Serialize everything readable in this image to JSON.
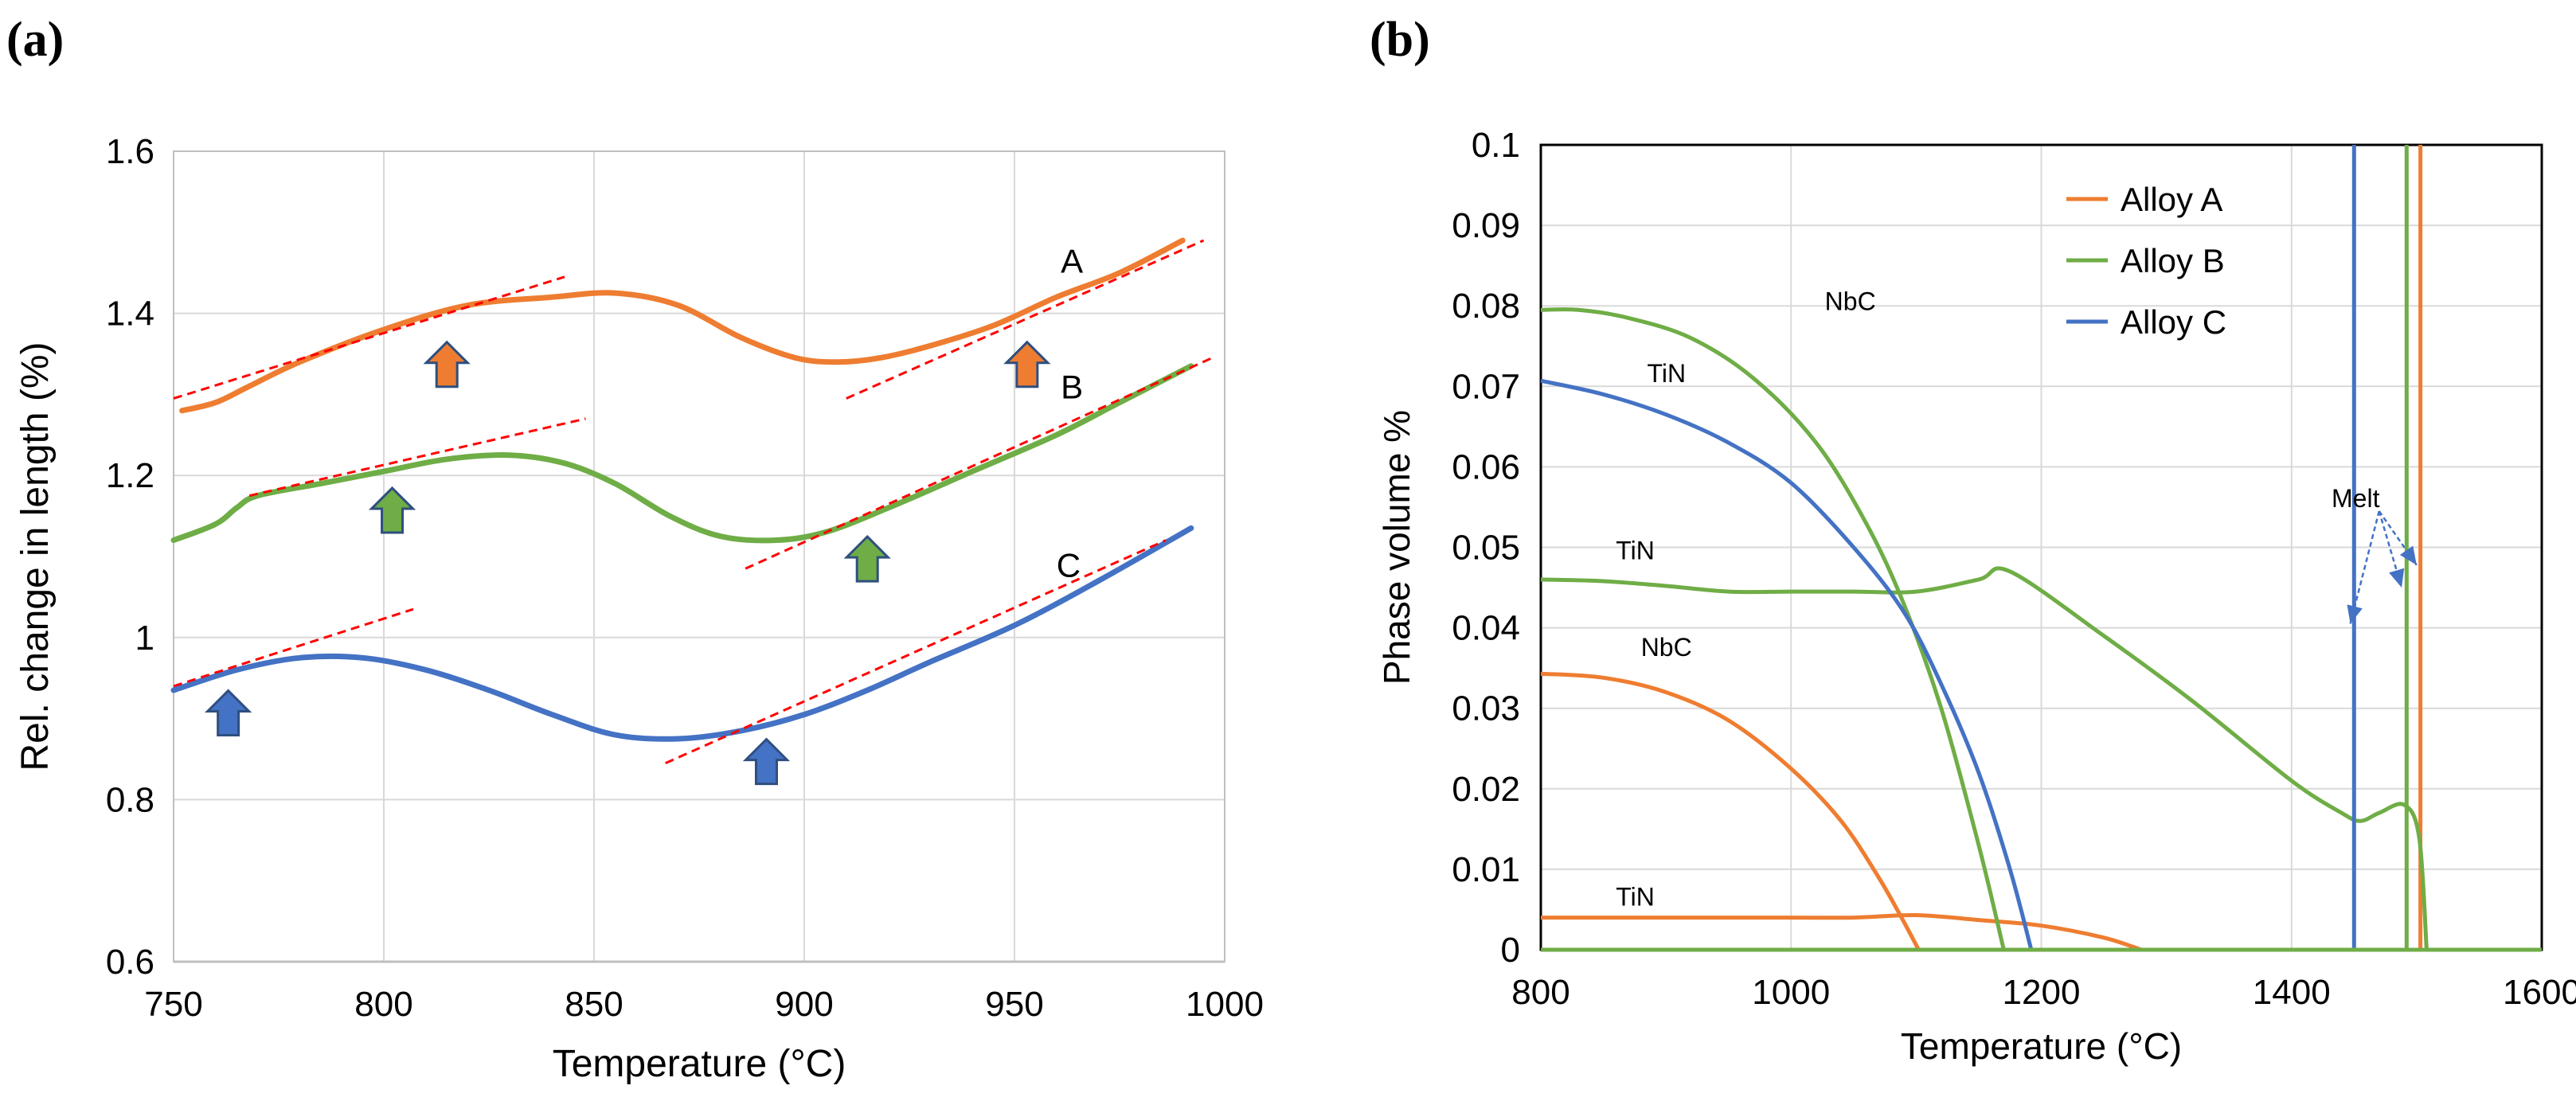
{
  "chart_data": [
    {
      "type": "line",
      "panel_label": "(a)",
      "xlabel": "Temperature (°C)",
      "ylabel": "Rel. change in length (%)",
      "xlim": [
        750,
        1000
      ],
      "ylim": [
        0.6,
        1.6
      ],
      "x_ticks": [
        "750",
        "800",
        "850",
        "900",
        "950",
        "1000"
      ],
      "y_ticks": [
        "0.6",
        "0.8",
        "1",
        "1.2",
        "1.4",
        "1.6"
      ],
      "grid": true,
      "colors": {
        "A": "#ee7d31",
        "B": "#6fad46",
        "C": "#4472c4",
        "tangent": "#ff0000"
      },
      "series": [
        {
          "name": "A",
          "label": "A",
          "x": [
            752,
            760,
            768,
            780,
            800,
            820,
            840,
            855,
            870,
            885,
            898,
            908,
            918,
            930,
            945,
            960,
            975,
            990
          ],
          "y": [
            1.28,
            1.29,
            1.31,
            1.34,
            1.38,
            1.41,
            1.42,
            1.425,
            1.41,
            1.37,
            1.345,
            1.34,
            1.345,
            1.36,
            1.385,
            1.42,
            1.45,
            1.49
          ]
        },
        {
          "name": "B",
          "label": "B",
          "x": [
            750,
            760,
            765,
            770,
            785,
            800,
            815,
            830,
            843,
            855,
            868,
            880,
            893,
            905,
            920,
            940,
            960,
            975,
            992
          ],
          "y": [
            1.12,
            1.14,
            1.16,
            1.175,
            1.19,
            1.205,
            1.22,
            1.225,
            1.215,
            1.19,
            1.15,
            1.125,
            1.12,
            1.13,
            1.16,
            1.205,
            1.25,
            1.29,
            1.335
          ]
        },
        {
          "name": "C",
          "label": "C",
          "x": [
            750,
            765,
            780,
            795,
            810,
            825,
            840,
            855,
            870,
            885,
            900,
            915,
            930,
            950,
            970,
            992
          ],
          "y": [
            0.935,
            0.96,
            0.975,
            0.975,
            0.96,
            0.935,
            0.905,
            0.88,
            0.875,
            0.885,
            0.905,
            0.935,
            0.97,
            1.015,
            1.07,
            1.135
          ]
        }
      ],
      "tangent_lines": [
        {
          "x": [
            750,
            843
          ],
          "y": [
            1.295,
            1.445
          ]
        },
        {
          "x": [
            910,
            995
          ],
          "y": [
            1.295,
            1.49
          ]
        },
        {
          "x": [
            768,
            848
          ],
          "y": [
            1.175,
            1.27
          ]
        },
        {
          "x": [
            886,
            997
          ],
          "y": [
            1.085,
            1.345
          ]
        },
        {
          "x": [
            750,
            807
          ],
          "y": [
            0.94,
            1.035
          ]
        },
        {
          "x": [
            867,
            986
          ],
          "y": [
            0.845,
            1.12
          ]
        }
      ],
      "arrows": [
        {
          "series": "A",
          "x": 815,
          "y": 1.335
        },
        {
          "series": "A",
          "x": 953,
          "y": 1.335
        },
        {
          "series": "B",
          "x": 802,
          "y": 1.155
        },
        {
          "series": "B",
          "x": 915,
          "y": 1.095
        },
        {
          "series": "C",
          "x": 763,
          "y": 0.905
        },
        {
          "series": "C",
          "x": 891,
          "y": 0.845
        }
      ],
      "series_labels": [
        {
          "text": "A",
          "x": 961,
          "y": 1.45
        },
        {
          "text": "B",
          "x": 961,
          "y": 1.295
        },
        {
          "text": "C",
          "x": 960,
          "y": 1.075
        }
      ]
    },
    {
      "type": "line",
      "panel_label": "(b)",
      "xlabel": "Temperature (°C)",
      "ylabel": "Phase volume %",
      "xlim": [
        800,
        1600
      ],
      "ylim": [
        0,
        0.1
      ],
      "x_ticks": [
        "800",
        "1000",
        "1200",
        "1400",
        "1600"
      ],
      "y_ticks": [
        "0",
        "0.01",
        "0.02",
        "0.03",
        "0.04",
        "0.05",
        "0.06",
        "0.07",
        "0.08",
        "0.09",
        "0.1"
      ],
      "grid": true,
      "legend": {
        "position": "top-center",
        "entries": [
          "Alloy A",
          "Alloy B",
          "Alloy C"
        ]
      },
      "colors": {
        "Alloy A": "#ee7d31",
        "Alloy B": "#6fad46",
        "Alloy C": "#4472c4",
        "Melt": "#4472c4"
      },
      "series": [
        {
          "name": "Alloy A NbC",
          "alloy": "Alloy A",
          "x": [
            800,
            850,
            900,
            950,
            1000,
            1040,
            1070,
            1090,
            1102
          ],
          "y": [
            0.0343,
            0.0338,
            0.032,
            0.0285,
            0.0225,
            0.016,
            0.009,
            0.0035,
            0
          ]
        },
        {
          "name": "Alloy A TiN",
          "alloy": "Alloy A",
          "x": [
            800,
            900,
            1000,
            1050,
            1100,
            1150,
            1200,
            1250,
            1280
          ],
          "y": [
            0.004,
            0.004,
            0.004,
            0.004,
            0.0043,
            0.0037,
            0.003,
            0.0015,
            0
          ]
        },
        {
          "name": "Alloy A Melt",
          "alloy": "Alloy A",
          "x": [
            1503,
            1503
          ],
          "y": [
            0,
            0.1
          ]
        },
        {
          "name": "Alloy B NbC",
          "alloy": "Alloy B",
          "x": [
            800,
            830,
            870,
            920,
            970,
            1020,
            1060,
            1090,
            1120,
            1150,
            1170
          ],
          "y": [
            0.0795,
            0.0795,
            0.0785,
            0.076,
            0.071,
            0.063,
            0.053,
            0.043,
            0.03,
            0.013,
            0
          ]
        },
        {
          "name": "Alloy B TiN",
          "alloy": "Alloy B",
          "x": [
            800,
            850,
            900,
            950,
            1000,
            1050,
            1100,
            1150,
            1175,
            1250,
            1320,
            1400,
            1440,
            1455,
            1470,
            1490,
            1502,
            1508
          ],
          "y": [
            0.046,
            0.0458,
            0.0452,
            0.0445,
            0.0445,
            0.0445,
            0.0445,
            0.046,
            0.047,
            0.039,
            0.031,
            0.021,
            0.017,
            0.016,
            0.017,
            0.018,
            0.014,
            0
          ]
        },
        {
          "name": "Alloy B Melt",
          "alloy": "Alloy B",
          "x": [
            1492,
            1492
          ],
          "y": [
            0,
            0.1
          ]
        },
        {
          "name": "Alloy C TiN",
          "alloy": "Alloy C",
          "x": [
            800,
            850,
            900,
            950,
            1000,
            1050,
            1090,
            1120,
            1150,
            1175,
            1192
          ],
          "y": [
            0.0707,
            0.069,
            0.0665,
            0.063,
            0.058,
            0.05,
            0.042,
            0.033,
            0.022,
            0.01,
            0
          ]
        },
        {
          "name": "Alloy C Melt",
          "alloy": "Alloy C",
          "x": [
            1450,
            1450
          ],
          "y": [
            0,
            0.1
          ]
        },
        {
          "name": "Baseline",
          "alloy": "Alloy B",
          "x": [
            800,
            1600
          ],
          "y": [
            0,
            0
          ]
        }
      ],
      "annotations": [
        {
          "text": "NbC",
          "x": 1027,
          "y": 0.0795
        },
        {
          "text": "TiN",
          "x": 885,
          "y": 0.0705
        },
        {
          "text": "TiN",
          "x": 860,
          "y": 0.0485
        },
        {
          "text": "NbC",
          "x": 880,
          "y": 0.0365
        },
        {
          "text": "TiN",
          "x": 860,
          "y": 0.0055
        },
        {
          "text": "Melt",
          "x": 1432,
          "y": 0.055
        }
      ],
      "melt_arrows": [
        {
          "from": [
            1470,
            0.0545
          ],
          "to": [
            1447,
            0.0405
          ]
        },
        {
          "from": [
            1470,
            0.0545
          ],
          "to": [
            1488,
            0.045
          ]
        },
        {
          "from": [
            1470,
            0.0545
          ],
          "to": [
            1500,
            0.0478
          ]
        }
      ]
    }
  ]
}
